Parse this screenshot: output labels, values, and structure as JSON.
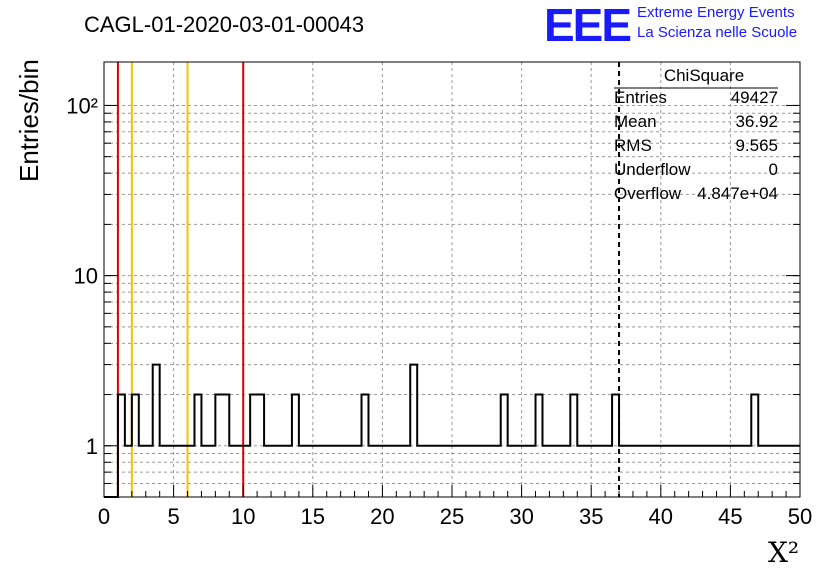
{
  "chart_data": {
    "type": "bar",
    "title": "CAGL-01-2020-03-01-00043",
    "xlabel": "X²",
    "ylabel": "Entries/bin",
    "xlim": [
      0,
      50
    ],
    "ylim": [
      0.5,
      180
    ],
    "y_scale": "log",
    "grid": true,
    "x_ticks": [
      "0",
      "5",
      "10",
      "15",
      "20",
      "25",
      "30",
      "35",
      "40",
      "45",
      "50"
    ],
    "y_ticks": [
      "1",
      "10",
      "10²"
    ],
    "bin_width": 0.5,
    "bin_start": 0,
    "values": [
      0,
      0,
      2,
      1,
      2,
      1,
      1,
      3,
      1,
      1,
      1,
      1,
      1,
      2,
      1,
      1,
      2,
      2,
      1,
      1,
      1,
      2,
      2,
      1,
      1,
      1,
      1,
      2,
      1,
      1,
      1,
      1,
      1,
      1,
      1,
      1,
      1,
      2,
      1,
      1,
      1,
      1,
      1,
      1,
      3,
      1,
      1,
      1,
      1,
      1,
      1,
      1,
      1,
      1,
      1,
      1,
      1,
      2,
      1,
      1,
      1,
      1,
      2,
      1,
      1,
      1,
      1,
      2,
      1,
      1,
      1,
      1,
      1,
      2,
      1,
      1,
      1,
      1,
      1,
      1,
      1,
      1,
      1,
      1,
      1,
      1,
      1,
      1,
      1,
      1,
      1,
      1,
      1,
      2,
      1,
      1,
      1,
      1,
      1,
      1
    ],
    "vertical_lines": [
      {
        "x": 1,
        "color": "#e00000"
      },
      {
        "x": 2,
        "color": "#f5c400"
      },
      {
        "x": 6,
        "color": "#f5c400"
      },
      {
        "x": 10,
        "color": "#e00000"
      },
      {
        "x": 37,
        "color": "#000000",
        "dashed": true
      }
    ]
  },
  "logo": {
    "text": "EEE",
    "line1": "Extreme Energy Events",
    "line2": "La Scienza nelle Scuole"
  },
  "stats": {
    "title": "ChiSquare",
    "rows": [
      {
        "label": "Entries",
        "value": "49427"
      },
      {
        "label": "Mean",
        "value": "36.92"
      },
      {
        "label": "RMS",
        "value": "9.565"
      },
      {
        "label": "Underflow",
        "value": "0"
      },
      {
        "label": "Overflow",
        "value": "4.847e+04"
      }
    ]
  },
  "colors": {
    "hist": "#000000",
    "grid": "#9a9a9a",
    "logo": "#1a1aff"
  }
}
